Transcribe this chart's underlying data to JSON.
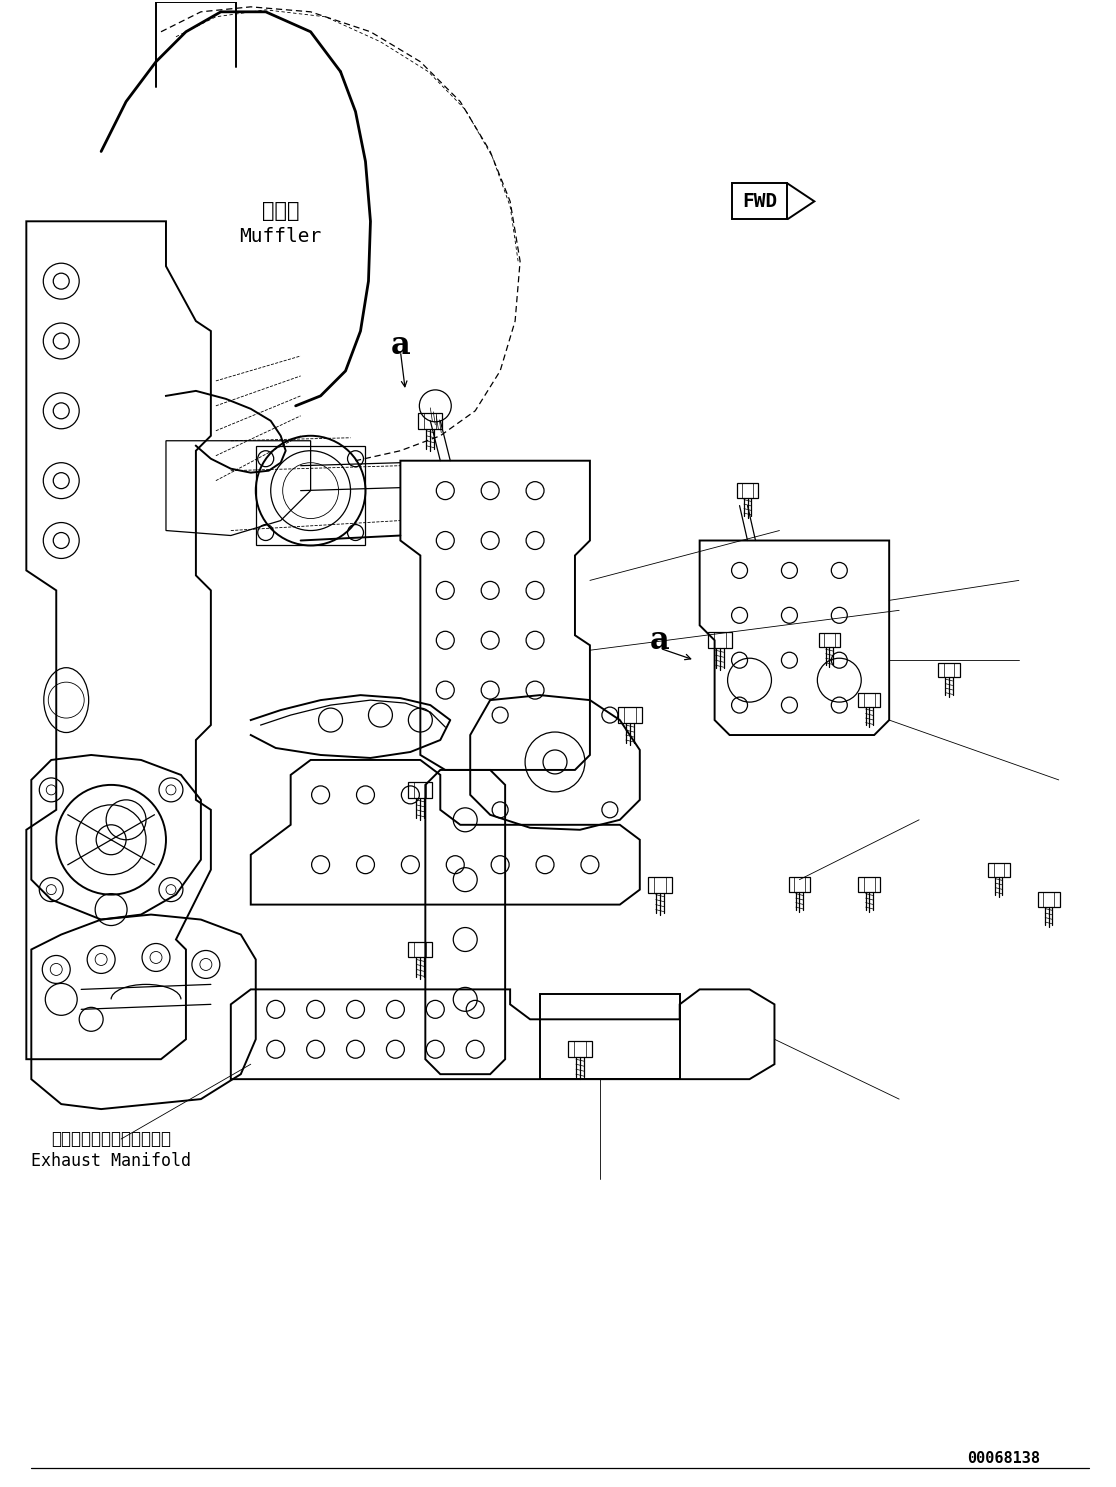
{
  "background_color": "#ffffff",
  "line_color": "#000000",
  "figure_width": 11.16,
  "figure_height": 14.87,
  "dpi": 100,
  "labels": {
    "muffler_jp": "マフラ",
    "muffler_en": "Muffler",
    "exhaust_jp": "エキゾーストマニホールド",
    "exhaust_en": "Exhaust Manifold",
    "fwd": "FWD",
    "label_a": "a",
    "part_num": "00068138"
  }
}
